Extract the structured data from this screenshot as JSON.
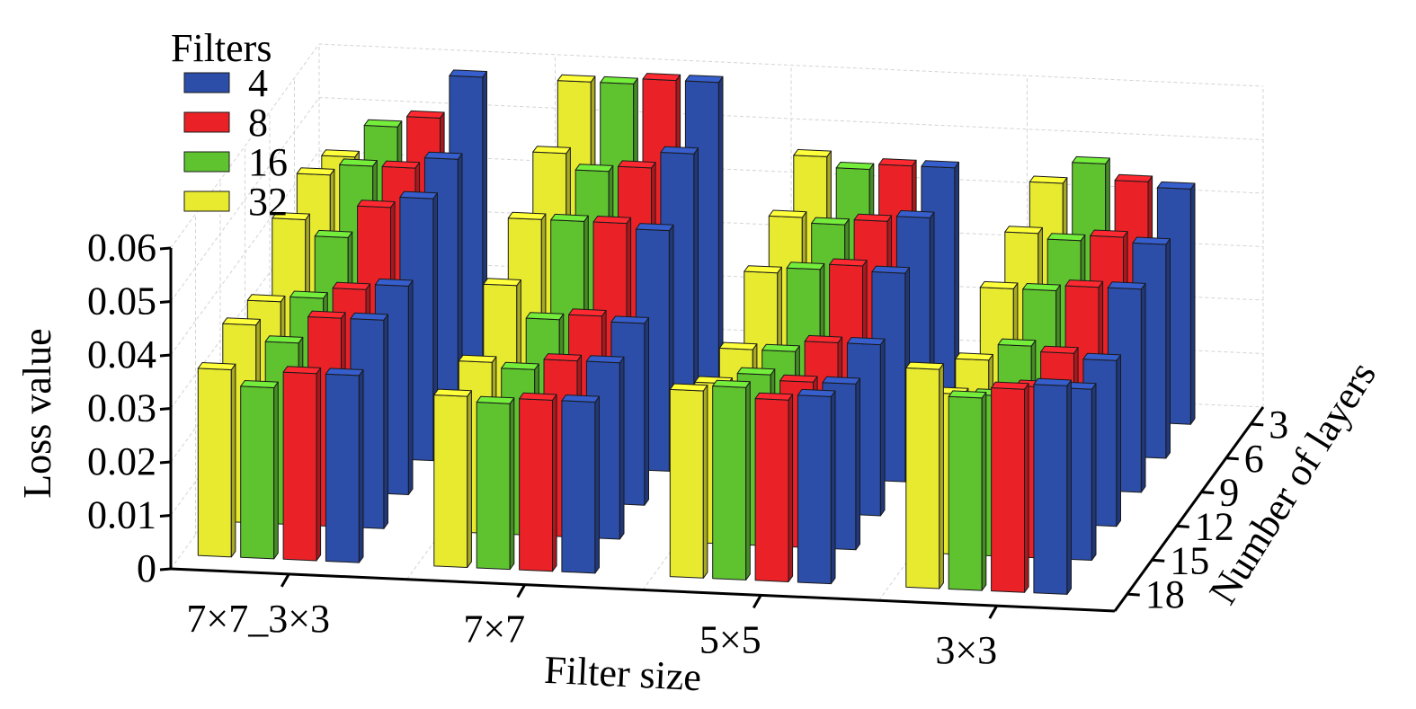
{
  "chart_data": {
    "type": "bar3d",
    "title": "",
    "xlabel": "Filter size",
    "ylabel": "Number of layers",
    "zlabel": "Loss value",
    "zlim": [
      0,
      0.06
    ],
    "z_ticks": [
      "0",
      "0.01",
      "0.02",
      "0.03",
      "0.04",
      "0.05",
      "0.06"
    ],
    "filter_sizes": [
      "7×7_3×3",
      "7×7",
      "5×5",
      "3×3"
    ],
    "layers": [
      "3",
      "6",
      "9",
      "12",
      "15",
      "18"
    ],
    "legend_title": "Filters",
    "legend_placement": "top-left",
    "grid": true,
    "series": [
      {
        "name": "32",
        "color": "#e8ea30"
      },
      {
        "name": "16",
        "color": "#5fc330"
      },
      {
        "name": "8",
        "color": "#ea2228"
      },
      {
        "name": "4",
        "color": "#2c4da8"
      }
    ],
    "legend_order": [
      "4",
      "8",
      "16",
      "32"
    ],
    "values": {
      "7×7_3×3": {
        "3": [
          0.043,
          0.049,
          0.051,
          0.059
        ],
        "6": [
          0.046,
          0.048,
          0.048,
          0.05
        ],
        "9": [
          0.044,
          0.041,
          0.047,
          0.049
        ],
        "12": [
          0.035,
          0.036,
          0.038,
          0.039
        ],
        "15": [
          0.037,
          0.034,
          0.039,
          0.039
        ],
        "18": [
          0.035,
          0.032,
          0.035,
          0.035
        ]
      },
      "7×7": {
        "3": [
          0.059,
          0.059,
          0.06,
          0.06
        ],
        "6": [
          0.052,
          0.049,
          0.05,
          0.053
        ],
        "9": [
          0.046,
          0.046,
          0.046,
          0.045
        ],
        "12": [
          0.04,
          0.034,
          0.035,
          0.034
        ],
        "15": [
          0.032,
          0.031,
          0.033,
          0.033
        ],
        "18": [
          0.032,
          0.031,
          0.032,
          0.032
        ]
      },
      "5×5": {
        "3": [
          0.047,
          0.045,
          0.046,
          0.046
        ],
        "6": [
          0.042,
          0.041,
          0.042,
          0.043
        ],
        "9": [
          0.038,
          0.039,
          0.04,
          0.039
        ],
        "12": [
          0.03,
          0.03,
          0.032,
          0.032
        ],
        "15": [
          0.03,
          0.032,
          0.031,
          0.031
        ],
        "18": [
          0.035,
          0.036,
          0.034,
          0.035
        ]
      },
      "3×3": {
        "3": [
          0.044,
          0.048,
          0.045,
          0.044
        ],
        "6": [
          0.041,
          0.04,
          0.041,
          0.04
        ],
        "9": [
          0.037,
          0.037,
          0.038,
          0.038
        ],
        "12": [
          0.03,
          0.033,
          0.032,
          0.031
        ],
        "15": [
          0.03,
          0.03,
          0.032,
          0.032
        ],
        "18": [
          0.041,
          0.036,
          0.038,
          0.039
        ]
      }
    }
  }
}
